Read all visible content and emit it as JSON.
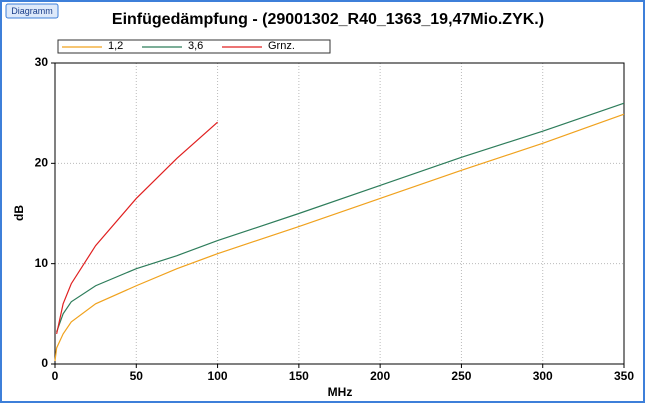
{
  "button": "Diagramm",
  "chart_data": {
    "type": "line",
    "title": "Einfügedämpfung - (29001302_R40_1363_19,47Mio.ZYK.)",
    "x_label": "MHz",
    "y_label": "dB",
    "x": [
      0,
      1,
      5,
      10,
      25,
      50,
      75,
      100,
      150,
      200,
      250,
      300,
      350
    ],
    "series": [
      {
        "name": "1,2",
        "color": "#f0a21e",
        "values": [
          0.3,
          1.6,
          3.0,
          4.2,
          6.0,
          7.8,
          9.5,
          11.0,
          13.7,
          16.5,
          19.3,
          22.0,
          24.9
        ]
      },
      {
        "name": "3,6",
        "color": "#2e7d5b",
        "values": [
          null,
          3.2,
          5.0,
          6.2,
          7.8,
          9.5,
          10.8,
          12.3,
          15.0,
          17.8,
          20.6,
          23.2,
          26.0
        ]
      },
      {
        "name": "Grnz.",
        "color": "#e02020",
        "values": [
          null,
          3.0,
          6.0,
          8.0,
          11.8,
          16.5,
          20.5,
          24.1,
          null,
          null,
          null,
          null,
          null
        ]
      }
    ],
    "xlim": [
      0,
      350
    ],
    "xticks": [
      0,
      50,
      100,
      150,
      200,
      250,
      300,
      350
    ],
    "ylim": [
      0,
      30
    ],
    "yticks": [
      0,
      10,
      20,
      30
    ],
    "grid": true
  }
}
